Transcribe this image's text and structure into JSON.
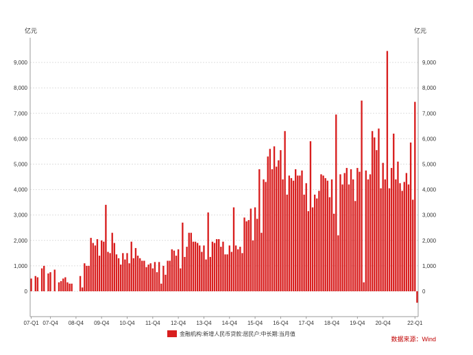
{
  "chart_data": {
    "type": "bar",
    "y_unit_left": "亿元",
    "y_unit_right": "亿元",
    "ylim": [
      -1000,
      10000
    ],
    "y_ticks": [
      0,
      1000,
      2000,
      3000,
      4000,
      5000,
      6000,
      7000,
      8000,
      9000
    ],
    "y_tick_labels": [
      "0",
      "1,000",
      "2,000",
      "3,000",
      "4,000",
      "5,000",
      "6,000",
      "7,000",
      "8,000",
      "9,000"
    ],
    "x_start": "2007-01",
    "x_end": "2022-03",
    "x_tick_labels": [
      "07-Q1",
      "07-Q4",
      "08-Q4",
      "09-Q4",
      "10-Q4",
      "11-Q4",
      "12-Q4",
      "13-Q4",
      "14-Q4",
      "15-Q4",
      "16-Q4",
      "17-Q4",
      "18-Q4",
      "19-Q4",
      "20-Q4",
      "22-Q1"
    ],
    "grid": true,
    "legend_position": "bottom",
    "series": [
      {
        "name": "金融机构:新增人民币贷款:居民户:中长期:当月值",
        "color": "#d81e1e",
        "values": [
          500,
          0,
          600,
          550,
          0,
          900,
          1000,
          0,
          700,
          750,
          0,
          850,
          0,
          350,
          400,
          500,
          550,
          350,
          300,
          300,
          0,
          0,
          0,
          600,
          150,
          1100,
          1000,
          1000,
          2100,
          1900,
          1800,
          2050,
          1400,
          2000,
          1950,
          3400,
          1550,
          1500,
          2300,
          1900,
          1450,
          1300,
          1050,
          1500,
          1250,
          1500,
          1100,
          1950,
          1300,
          1700,
          1400,
          1300,
          1200,
          1200,
          950,
          1050,
          1100,
          900,
          1150,
          750,
          1150,
          300,
          1000,
          650,
          1200,
          1200,
          1650,
          1600,
          1400,
          1650,
          900,
          2700,
          1350,
          1750,
          2300,
          2300,
          1950,
          1950,
          1900,
          1800,
          1550,
          1800,
          1250,
          3100,
          1350,
          1950,
          1900,
          2050,
          2050,
          1750,
          1950,
          1450,
          1450,
          1800,
          1550,
          3300,
          1800,
          1650,
          1750,
          1500,
          2900,
          2750,
          2800,
          3250,
          2000,
          3300,
          2850,
          4800,
          2300,
          4400,
          4300,
          5300,
          5600,
          4800,
          5700,
          4900,
          5150,
          5550,
          4400,
          6300,
          3800,
          4550,
          4450,
          4350,
          4800,
          4550,
          4550,
          4750,
          3800,
          4250,
          3150,
          5900,
          3300,
          3800,
          3650,
          3950,
          4600,
          4550,
          4450,
          4350,
          3700,
          4400,
          3050,
          6950,
          2200,
          4600,
          4200,
          4650,
          4850,
          4200,
          4800,
          4400,
          3550,
          4850,
          4700,
          7500,
          350,
          4750,
          4400,
          4600,
          6300,
          6050,
          5550,
          6400,
          4050,
          5050,
          4400,
          9450,
          4050,
          4850,
          6200,
          4400,
          5100,
          4250,
          3950,
          4300,
          4650,
          4200,
          5850,
          3600,
          7450,
          -450
        ]
      }
    ]
  },
  "legend_label": "金融机构:新增人民币贷款:居民户:中长期:当月值",
  "source_text": "数据来源：Wind"
}
